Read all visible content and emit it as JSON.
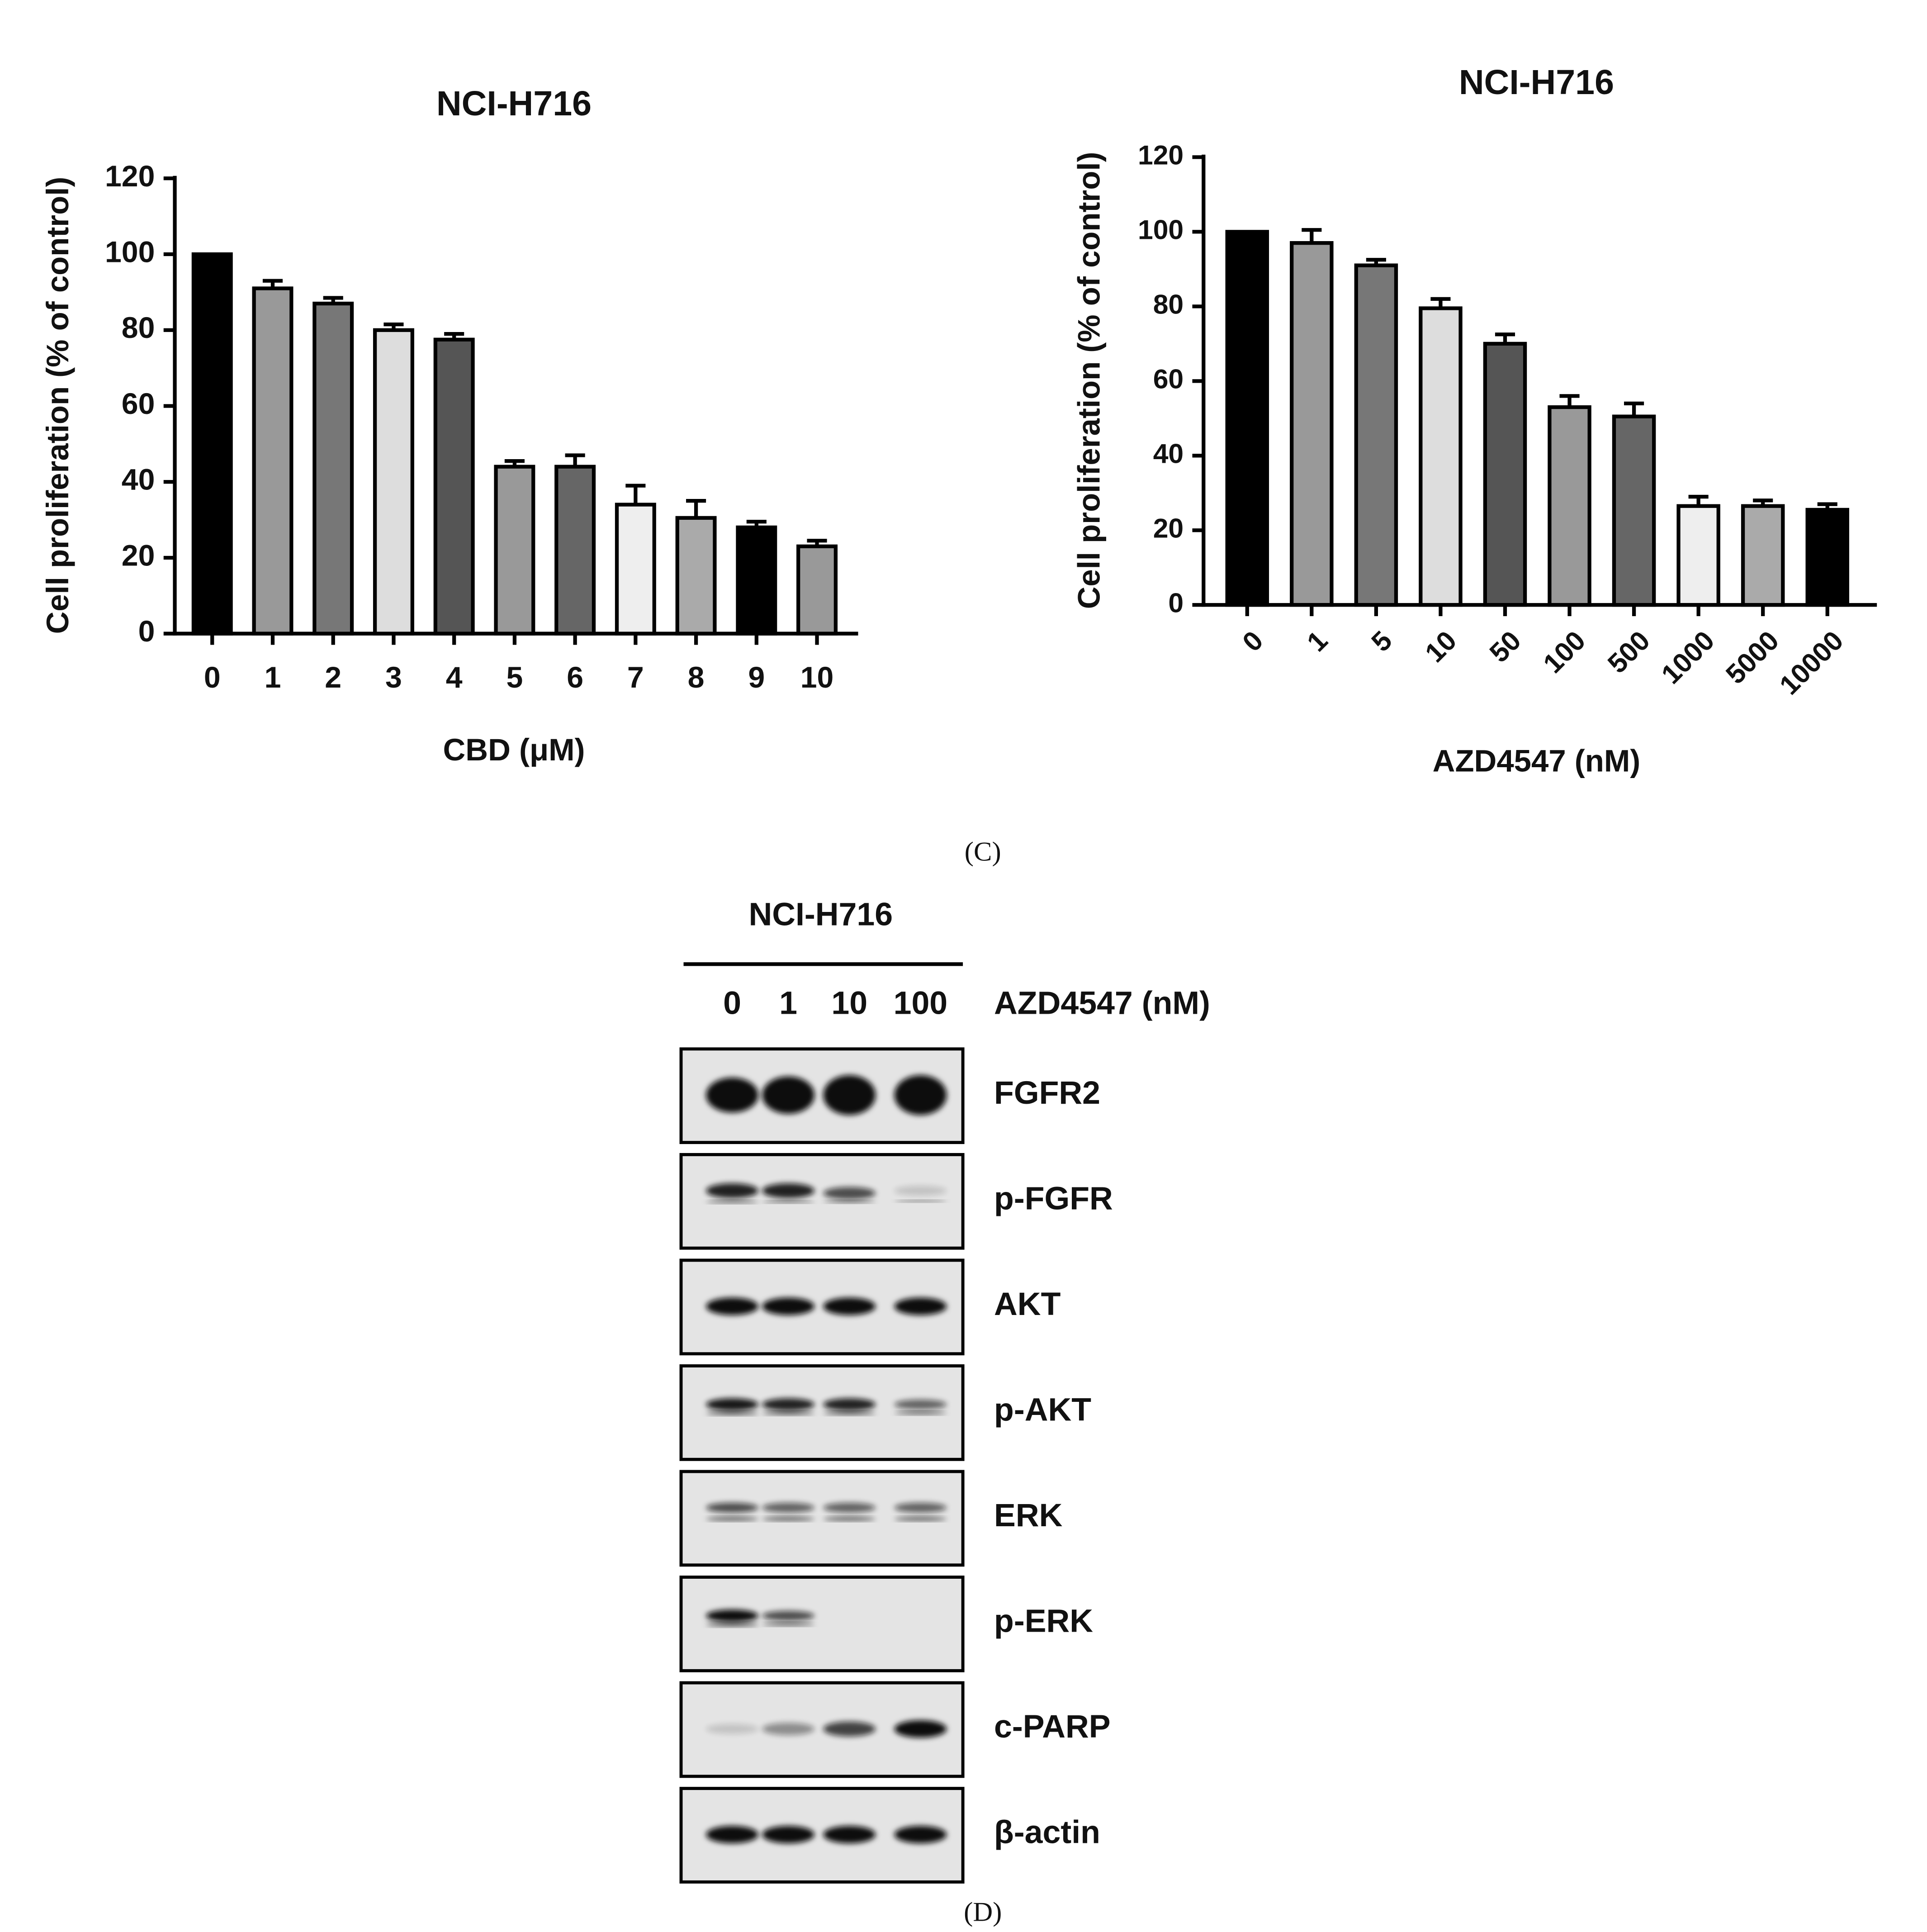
{
  "chart_data": [
    {
      "type": "bar",
      "title": "NCI-H716",
      "x_label": "CBD (μM)",
      "y_label": "Cell proliferation (% of control)",
      "categories": [
        "0",
        "1",
        "2",
        "3",
        "4",
        "5",
        "6",
        "7",
        "8",
        "9",
        "10"
      ],
      "values": [
        100,
        91,
        87,
        80,
        77.5,
        44,
        44,
        34,
        30.5,
        28,
        23
      ],
      "errors": [
        0,
        2,
        1.5,
        1.5,
        1.5,
        1.5,
        3,
        5,
        4.5,
        1.5,
        1.5
      ],
      "colors": [
        "#000000",
        "#999999",
        "#777777",
        "#dddddd",
        "#555555",
        "#999999",
        "#666666",
        "#eeeeee",
        "#aaaaaa",
        "#000000",
        "#999999"
      ],
      "ylim": [
        0,
        120
      ],
      "yticks": [
        0,
        20,
        40,
        60,
        80,
        100,
        120
      ]
    },
    {
      "type": "bar",
      "title": "NCI-H716",
      "x_label": "AZD4547 (nM)",
      "y_label": "Cell proliferation (% of control)",
      "categories": [
        "0",
        "1",
        "5",
        "10",
        "50",
        "100",
        "500",
        "1000",
        "5000",
        "10000"
      ],
      "values": [
        100,
        97,
        91,
        79.5,
        70,
        53,
        50.5,
        26.5,
        26.5,
        25.5
      ],
      "errors": [
        0,
        3.5,
        1.5,
        2.5,
        2.5,
        3,
        3.5,
        2.5,
        1.5,
        1.5
      ],
      "colors": [
        "#000000",
        "#999999",
        "#777777",
        "#dddddd",
        "#555555",
        "#999999",
        "#666666",
        "#eeeeee",
        "#aaaaaa",
        "#000000"
      ],
      "ylim": [
        0,
        120
      ],
      "yticks": [
        0,
        20,
        40,
        60,
        80,
        100,
        120
      ]
    }
  ],
  "panel_labels": [
    "(C)",
    "(D)"
  ],
  "blot": {
    "title": "NCI-H716",
    "treatment": "AZD4547 (nM)",
    "lanes": [
      "0",
      "1",
      "10",
      "100"
    ],
    "proteins": [
      "FGFR2",
      "p-FGFR",
      "AKT",
      "p-AKT",
      "ERK",
      "p-ERK",
      "c-PARP",
      "β-actin"
    ]
  }
}
